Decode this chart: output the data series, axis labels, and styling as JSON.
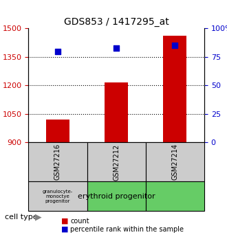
{
  "title": "GDS853 / 1417295_at",
  "samples": [
    "GSM27216",
    "GSM27212",
    "GSM27214"
  ],
  "counts": [
    1020,
    1215,
    1460
  ],
  "percentiles": [
    80,
    83,
    85
  ],
  "ylim_left": [
    900,
    1500
  ],
  "ylim_right": [
    0,
    100
  ],
  "yticks_left": [
    900,
    1050,
    1200,
    1350,
    1500
  ],
  "yticks_right": [
    0,
    25,
    50,
    75,
    100
  ],
  "ytick_labels_right": [
    "0",
    "25",
    "50",
    "75",
    "100%"
  ],
  "bar_color": "#cc0000",
  "dot_color": "#0000cc",
  "bar_bottom": 900,
  "cell_types": [
    "granulocyte-\nmonoctye\nprogenitor",
    "erythroid progenitor",
    "erythroid progenitor"
  ],
  "cell_type_colors": [
    "#cccccc",
    "#66cc66",
    "#66cc66"
  ],
  "grid_color": "#000000",
  "dotted_yticks": [
    1050,
    1200,
    1350
  ]
}
